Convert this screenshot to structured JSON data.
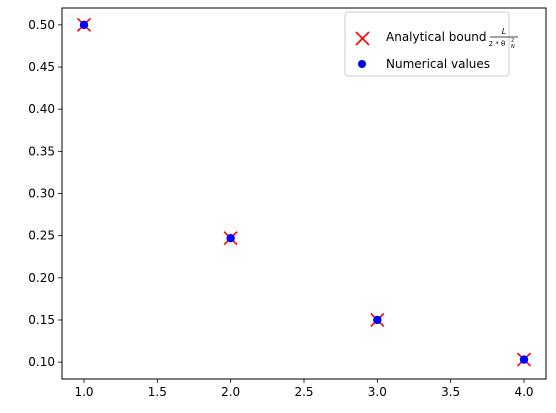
{
  "chart_data": {
    "type": "scatter",
    "title": "",
    "xlabel": "",
    "ylabel": "",
    "xlim": [
      0.85,
      4.15
    ],
    "ylim": [
      0.08,
      0.52
    ],
    "xticks": [
      "1.0",
      "1.5",
      "2.0",
      "2.5",
      "3.0",
      "3.5",
      "4.0"
    ],
    "yticks": [
      "0.10",
      "0.15",
      "0.20",
      "0.25",
      "0.30",
      "0.35",
      "0.40",
      "0.45",
      "0.50"
    ],
    "grid": false,
    "legend_position": "top-right",
    "series": [
      {
        "name": "Analytical bound",
        "marker": "x",
        "color": "#ff0000",
        "x": [
          1.0,
          2.0,
          3.0,
          4.0
        ],
        "y": [
          0.5,
          0.247,
          0.15,
          0.103
        ]
      },
      {
        "name": "Numerical values",
        "marker": "o",
        "color": "#0000ff",
        "x": [
          1.0,
          2.0,
          3.0,
          4.0
        ],
        "y": [
          0.5,
          0.247,
          0.15,
          0.103
        ]
      }
    ],
    "legend": {
      "analytical_label": "Analytical bound",
      "formula_numerator": "L",
      "formula_denominator": "2 * θ",
      "formula_sup": "2",
      "formula_sub": "N",
      "numerical_label": "Numerical values"
    }
  }
}
